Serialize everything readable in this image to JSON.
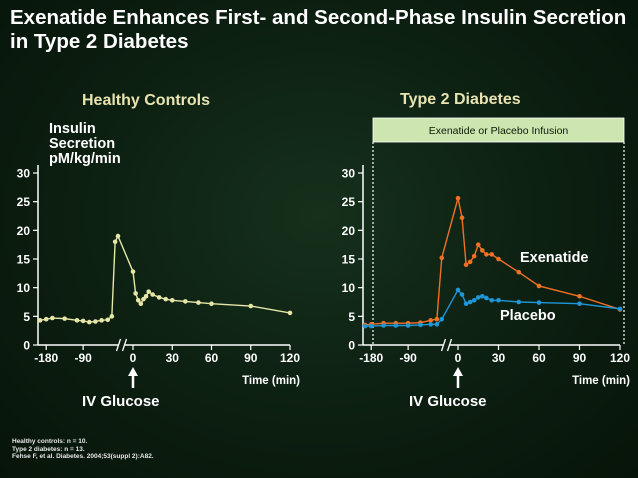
{
  "title": "Exenatide Enhances First- and Second-Phase Insulin Secretion in Type 2 Diabetes",
  "y_label_lines": [
    "Insulin",
    "Secretion",
    "pM/kg/min"
  ],
  "iv_glucose_label": "IV Glucose",
  "footnotes": [
    "Healthy controls: n = 10.",
    "Type 2 diabetes: n = 13.",
    "Fehse F, et al. Diabetes. 2004;53(suppl 2):A82."
  ],
  "colors": {
    "healthy": "#e6e6a6",
    "exenatide": "#f07025",
    "placebo": "#1e96d8",
    "infusion_box": "#cde6b0",
    "axis": "#ffffff"
  },
  "chart_data": [
    {
      "type": "line",
      "title": "Healthy Controls",
      "xlabel": "Time (min)",
      "ylabel": "Insulin Secretion pM/kg/min",
      "x_ticks": [
        -180,
        -90,
        0,
        30,
        60,
        90,
        120
      ],
      "y_ticks": [
        0,
        5,
        10,
        15,
        20,
        25,
        30
      ],
      "ylim": [
        0,
        30
      ],
      "axis_break": true,
      "grid": false,
      "series": [
        {
          "x": [
            -195,
            -180,
            -165,
            -135,
            -105,
            -90,
            -75,
            -60,
            -45,
            -30,
            -20,
            -12,
            -5,
            0,
            2,
            4,
            6,
            8,
            10,
            12,
            15,
            20,
            25,
            30,
            40,
            50,
            60,
            90,
            120
          ],
          "y": [
            4.3,
            4.5,
            4.7,
            4.6,
            4.3,
            4.2,
            4.0,
            4.1,
            4.3,
            4.4,
            5.0,
            18.0,
            19.0,
            12.8,
            9.0,
            7.8,
            7.2,
            8.0,
            8.5,
            9.3,
            8.8,
            8.3,
            8.0,
            7.8,
            7.6,
            7.4,
            7.2,
            6.8,
            5.6
          ]
        }
      ]
    },
    {
      "type": "line",
      "title": "Type 2 Diabetes",
      "xlabel": "Time (min)",
      "x_ticks": [
        -180,
        -90,
        0,
        30,
        60,
        90,
        120
      ],
      "y_ticks": [
        0,
        5,
        10,
        15,
        20,
        25,
        30
      ],
      "ylim": [
        0,
        30
      ],
      "axis_break": true,
      "grid": false,
      "annotation": "Exenatide or Placebo Infusion",
      "series": [
        {
          "name": "Exenatide",
          "x": [
            -195,
            -180,
            -150,
            -120,
            -90,
            -60,
            -35,
            -20,
            -8,
            0,
            3,
            6,
            9,
            12,
            15,
            18,
            21,
            25,
            30,
            45,
            60,
            90,
            120
          ],
          "y": [
            3.5,
            3.6,
            3.8,
            3.8,
            3.8,
            3.9,
            4.3,
            4.5,
            15.2,
            25.6,
            22.2,
            14.0,
            14.5,
            15.5,
            17.5,
            16.5,
            15.8,
            15.8,
            15.0,
            12.7,
            10.3,
            8.5,
            6.2
          ]
        },
        {
          "name": "Placebo",
          "x": [
            -195,
            -180,
            -150,
            -120,
            -90,
            -60,
            -35,
            -20,
            -8,
            0,
            3,
            6,
            9,
            12,
            15,
            18,
            21,
            25,
            30,
            45,
            60,
            90,
            120
          ],
          "y": [
            3.3,
            3.3,
            3.4,
            3.4,
            3.4,
            3.5,
            3.6,
            3.6,
            4.5,
            9.6,
            8.8,
            7.2,
            7.5,
            7.8,
            8.3,
            8.5,
            8.2,
            7.8,
            7.8,
            7.5,
            7.4,
            7.2,
            6.3
          ]
        }
      ]
    }
  ]
}
